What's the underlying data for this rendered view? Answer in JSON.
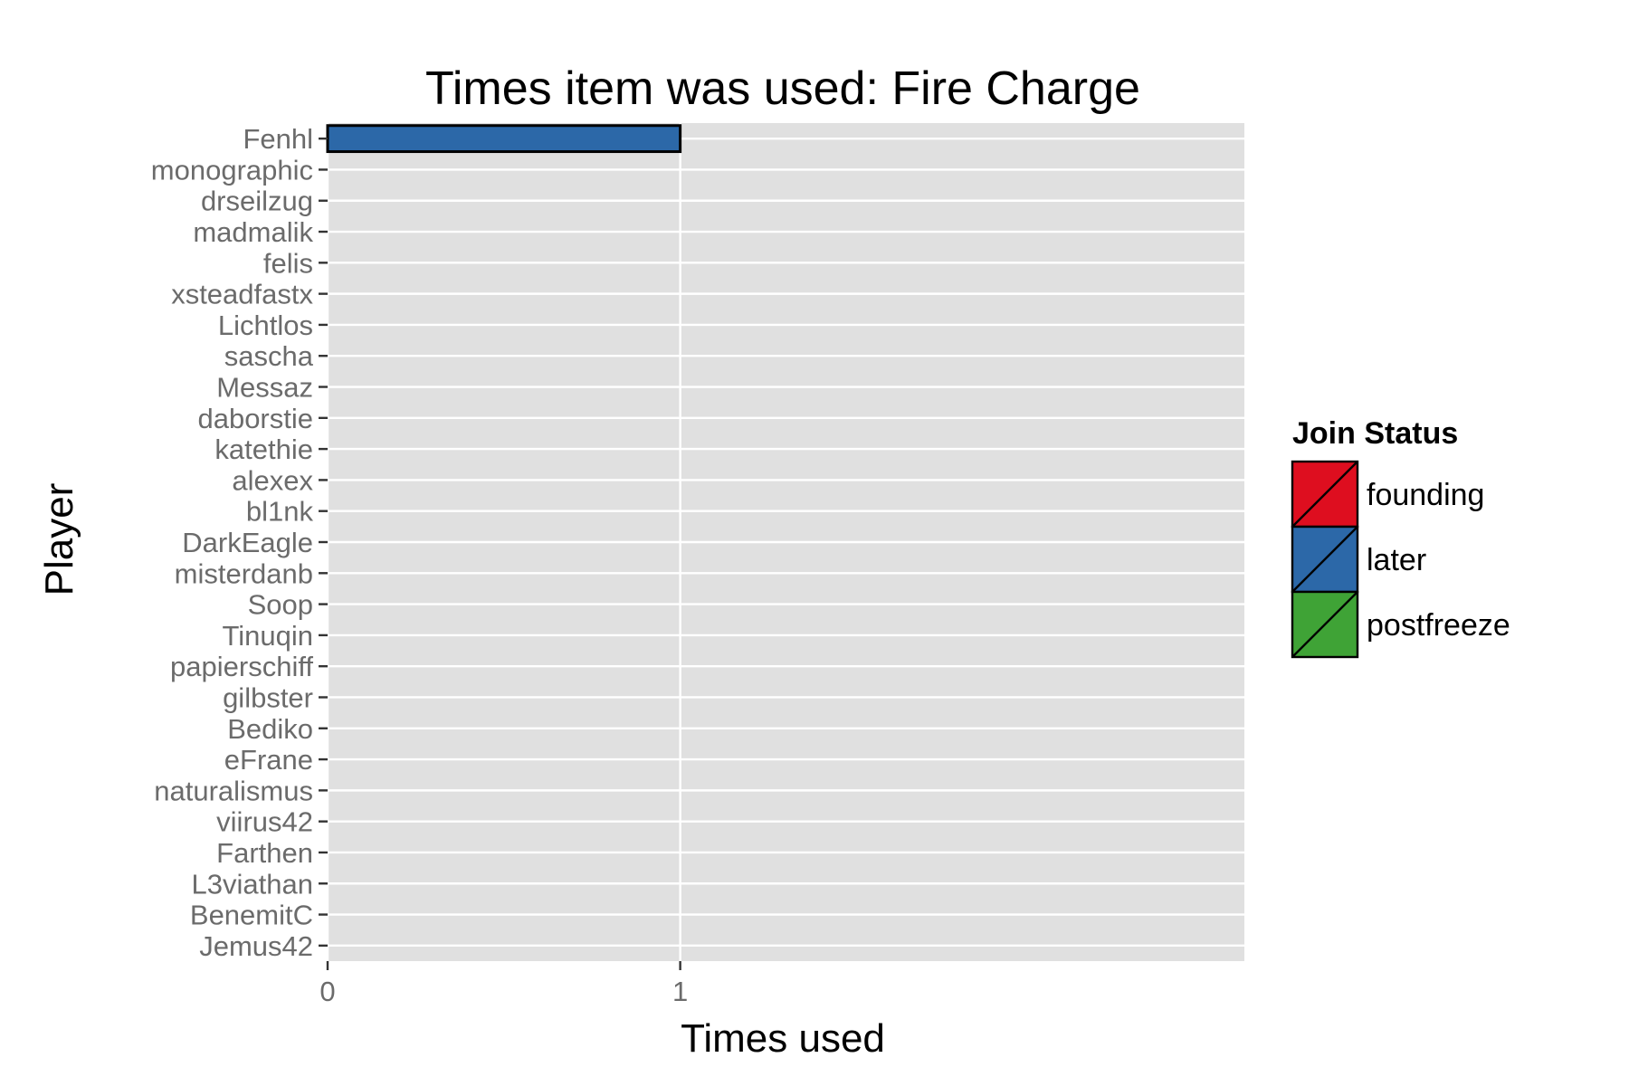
{
  "chart_data": {
    "type": "bar",
    "orientation": "horizontal",
    "title": "Times item was used: Fire Charge",
    "xlabel": "Times used",
    "ylabel": "Player",
    "xlim": [
      0,
      2.6
    ],
    "x_ticks": [
      0,
      1
    ],
    "grid": true,
    "legend_position": "right",
    "legend": {
      "title": "Join Status",
      "items": [
        {
          "label": "founding",
          "color": "#de0e1f"
        },
        {
          "label": "later",
          "color": "#2c68a8"
        },
        {
          "label": "postfreeze",
          "color": "#3fa336"
        }
      ]
    },
    "categories": [
      "Fenhl",
      "monographic",
      "drseilzug",
      "madmalik",
      "felis",
      "xsteadfastx",
      "Lichtlos",
      "sascha",
      "Messaz",
      "daborstie",
      "katethie",
      "alexex",
      "bl1nk",
      "DarkEagle",
      "misterdanb",
      "Soop",
      "Tinuqin",
      "papierschiff",
      "gilbster",
      "Bediko",
      "eFrane",
      "naturalismus",
      "viirus42",
      "Farthen",
      "L3viathan",
      "BenemitC",
      "Jemus42"
    ],
    "values": [
      1,
      0,
      0,
      0,
      0,
      0,
      0,
      0,
      0,
      0,
      0,
      0,
      0,
      0,
      0,
      0,
      0,
      0,
      0,
      0,
      0,
      0,
      0,
      0,
      0,
      0,
      0
    ],
    "bar_group": [
      "later",
      "later",
      "later",
      "later",
      "later",
      "later",
      "later",
      "later",
      "later",
      "later",
      "later",
      "later",
      "later",
      "later",
      "later",
      "later",
      "later",
      "later",
      "later",
      "later",
      "later",
      "later",
      "later",
      "later",
      "later",
      "later",
      "later"
    ],
    "colors": {
      "panel": "#e0e0e0",
      "grid": "#ffffff",
      "bar_outline": "#000000"
    }
  }
}
